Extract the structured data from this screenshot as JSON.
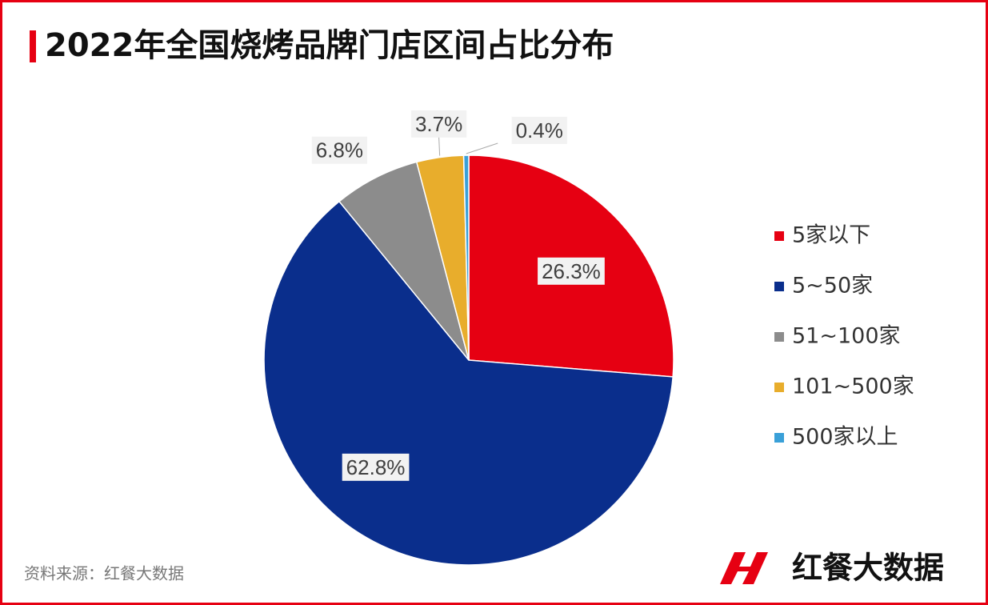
{
  "chart_data": {
    "type": "pie",
    "title": "2022年全国烧烤品牌门店区间占比分布",
    "categories": [
      "5家以下",
      "5~50家",
      "51~100家",
      "101~500家",
      "500家以上"
    ],
    "values": [
      26.3,
      62.8,
      6.8,
      3.7,
      0.4
    ],
    "value_labels": [
      "26.3%",
      "62.8%",
      "6.8%",
      "3.7%",
      "0.4%"
    ],
    "colors": [
      "#e60012",
      "#0a2e8c",
      "#8c8c8c",
      "#e8ad2c",
      "#3aa0d8"
    ],
    "legend": "right"
  },
  "source": "资料来源：红餐大数据",
  "logo": "红餐大数据"
}
